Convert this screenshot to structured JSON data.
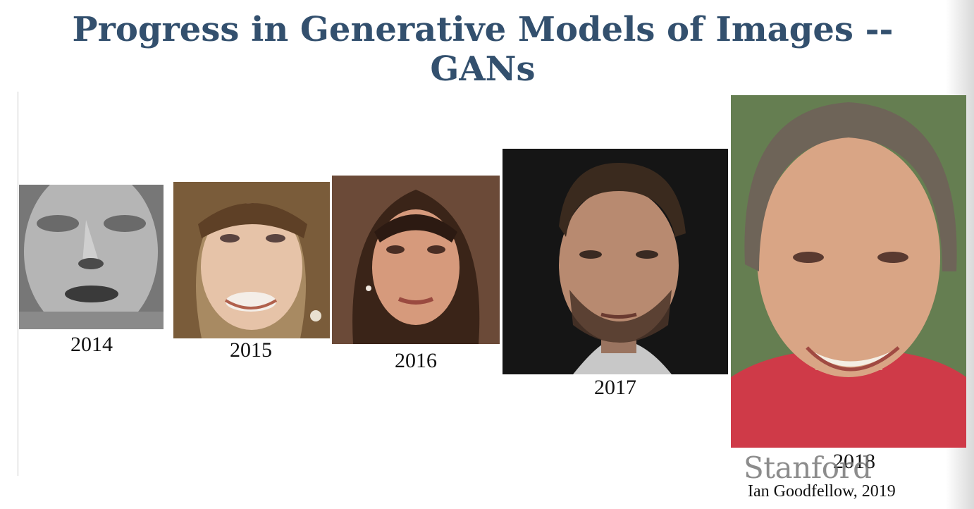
{
  "slide": {
    "title": "Progress in Generative Models of Images -- GANs",
    "faces": [
      {
        "year": "2014",
        "icon": "grayscale-face-image"
      },
      {
        "year": "2015",
        "icon": "face-image"
      },
      {
        "year": "2016",
        "icon": "face-image"
      },
      {
        "year": "2017",
        "icon": "face-image"
      },
      {
        "year": "2018",
        "icon": "face-image"
      }
    ],
    "logo_text": "Stanford",
    "credit": "Ian Goodfellow, 2019"
  },
  "colors": {
    "title": "#33506e",
    "text": "#111111",
    "logo": "#787878"
  }
}
